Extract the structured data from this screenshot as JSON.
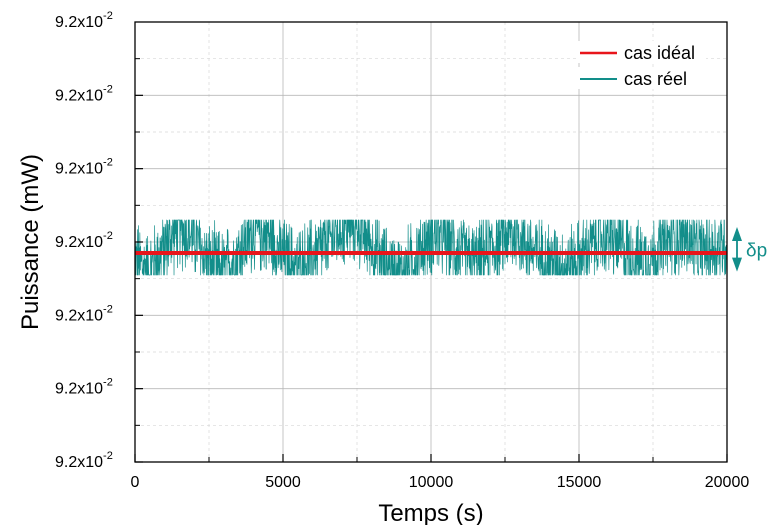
{
  "chart_data": {
    "type": "line",
    "xlabel": "Temps (s)",
    "ylabel": "Puissance (mW)",
    "xlim": [
      0,
      20000
    ],
    "ylim": [
      0.09197,
      0.09203
    ],
    "x_ticks": [
      {
        "value": 0,
        "label": "0"
      },
      {
        "value": 5000,
        "label": "5000"
      },
      {
        "value": 10000,
        "label": "10000"
      },
      {
        "value": 15000,
        "label": "15000"
      },
      {
        "value": 20000,
        "label": "20000"
      }
    ],
    "y_ticks": [
      {
        "value": 0.09197,
        "mantissa": "9.2x10",
        "exponent": "-2"
      },
      {
        "value": 0.09198,
        "mantissa": "9.2x10",
        "exponent": "-2"
      },
      {
        "value": 0.09199,
        "mantissa": "9.2x10",
        "exponent": "-2"
      },
      {
        "value": 0.092,
        "mantissa": "9.2x10",
        "exponent": "-2"
      },
      {
        "value": 0.09201,
        "mantissa": "9.2x10",
        "exponent": "-2"
      },
      {
        "value": 0.09202,
        "mantissa": "9.2x10",
        "exponent": "-2"
      }
    ],
    "grid": true,
    "legend_position": "top-right",
    "series": [
      {
        "name": "cas idéal",
        "color": "#e8151b",
        "kind": "constant",
        "value": 0.0919985
      },
      {
        "name": "cas réel",
        "color": "#128e8a",
        "kind": "noisy",
        "x": [
          0,
          500,
          1000,
          1500,
          2000,
          2500,
          3000,
          3500,
          4000,
          4500,
          5000,
          5500,
          6000,
          6500,
          7000,
          7500,
          8000,
          8500,
          9000,
          9500,
          10000,
          10500,
          11000,
          11500,
          12000,
          12500,
          13000,
          13500,
          14000,
          14500,
          15000,
          15500,
          16000,
          16500,
          17000,
          17500,
          18000,
          18500,
          19000,
          19500,
          20000
        ],
        "y": [
          0.0919975,
          0.091996,
          0.0919995,
          0.092002,
          0.0920005,
          0.091997,
          0.091996,
          0.0919985,
          0.0920015,
          0.092001,
          0.091998,
          0.0919965,
          0.091998,
          0.092,
          0.092002,
          0.0920025,
          0.0919995,
          0.0919965,
          0.0919955,
          0.091998,
          0.092001,
          0.0920005,
          0.0919985,
          0.091997,
          0.091999,
          0.092001,
          0.092001,
          0.0919985,
          0.0919975,
          0.0919965,
          0.0919975,
          0.092,
          0.092001,
          0.091999,
          0.0919975,
          0.091998,
          0.092,
          0.092001,
          0.0919985,
          0.091999,
          0.092
        ],
        "range": [
          0.0919955,
          0.092003
        ]
      }
    ],
    "annotation": {
      "label": "δp",
      "color": "#128e8a",
      "y_from": 0.0920015,
      "y_to": 0.0919965
    }
  }
}
